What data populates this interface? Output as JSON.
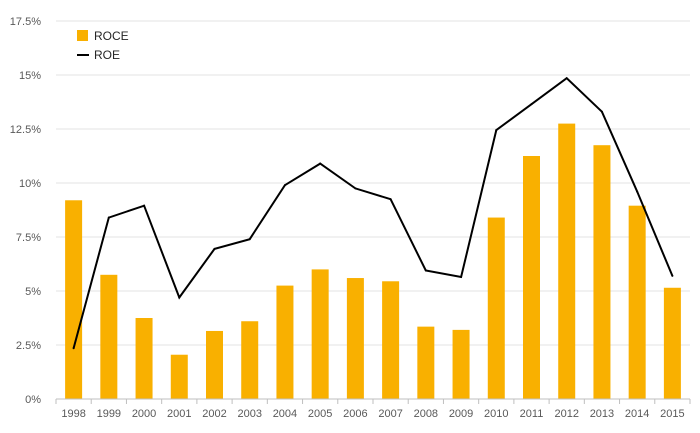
{
  "chart_data": {
    "type": "bar",
    "title": "",
    "xlabel": "",
    "ylabel": "",
    "categories": [
      "1998",
      "1999",
      "2000",
      "2001",
      "2002",
      "2003",
      "2004",
      "2005",
      "2006",
      "2007",
      "2008",
      "2009",
      "2010",
      "2011",
      "2012",
      "2013",
      "2014",
      "2015"
    ],
    "series": [
      {
        "name": "ROCE",
        "type": "bar",
        "color": "#F9B000",
        "values": [
          9.2,
          5.75,
          3.75,
          2.05,
          3.15,
          3.6,
          5.25,
          6.0,
          5.6,
          5.45,
          3.35,
          3.2,
          8.4,
          11.25,
          12.75,
          11.75,
          8.95,
          5.15
        ]
      },
      {
        "name": "ROE",
        "type": "line",
        "color": "#000000",
        "values": [
          2.35,
          8.4,
          8.95,
          4.7,
          6.95,
          7.4,
          9.9,
          10.9,
          9.75,
          9.25,
          5.95,
          5.65,
          12.45,
          13.65,
          14.85,
          13.3,
          9.6,
          5.7
        ]
      }
    ],
    "ylim": [
      0,
      17.5
    ],
    "y_ticks": [
      "0%",
      "2.5%",
      "5%",
      "7.5%",
      "10%",
      "12.5%",
      "15%",
      "17.5%"
    ],
    "y_tick_values": [
      0,
      2.5,
      5,
      7.5,
      10,
      12.5,
      15,
      17.5
    ],
    "grid": true,
    "legend_position": "top-left"
  }
}
